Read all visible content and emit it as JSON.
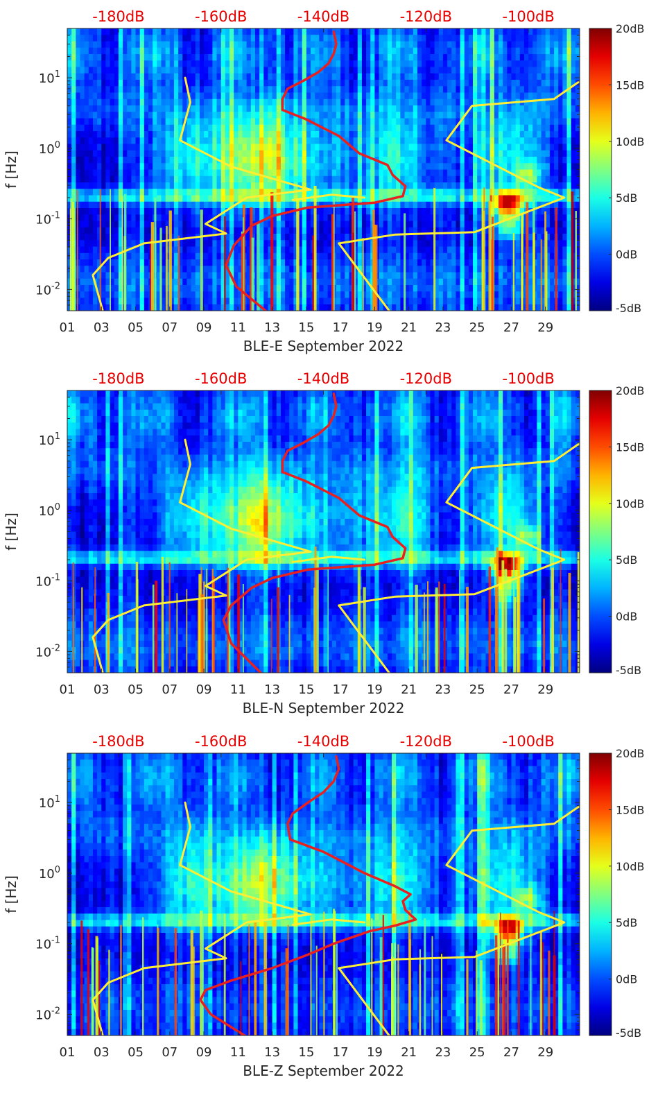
{
  "chart_data": [
    {
      "type": "heatmap",
      "title": "",
      "xlabel": "BLE-E September 2022",
      "ylabel": "f [Hz]",
      "x_tick_labels": [
        "01",
        "03",
        "05",
        "07",
        "09",
        "11",
        "13",
        "15",
        "17",
        "19",
        "21",
        "23",
        "25",
        "27",
        "29"
      ],
      "x_ticks_day": [
        1,
        3,
        5,
        7,
        9,
        11,
        13,
        15,
        17,
        19,
        21,
        23,
        25,
        27,
        29
      ],
      "xlim_day": [
        1,
        31
      ],
      "y_scale": "log",
      "ylim": [
        0.005,
        50
      ],
      "y_ticks": [
        {
          "value": 0.01,
          "base": "10",
          "exp": "-2"
        },
        {
          "value": 0.1,
          "base": "10",
          "exp": "-1"
        },
        {
          "value": 1,
          "base": "10",
          "exp": "0"
        },
        {
          "value": 10,
          "base": "10",
          "exp": "1"
        }
      ],
      "top_axis": {
        "labels": [
          "-180dB",
          "-160dB",
          "-140dB",
          "-120dB",
          "-100dB"
        ],
        "values_db": [
          -180,
          -160,
          -140,
          -120,
          -100
        ],
        "xlim_db": [
          -190,
          -90
        ]
      },
      "colorbar": {
        "labels": [
          "20dB",
          "15dB",
          "10dB",
          "5dB",
          "0dB",
          "-5dB"
        ],
        "values": [
          20,
          15,
          10,
          5,
          0,
          -5
        ],
        "range": [
          -5,
          20
        ],
        "colormap": "jet"
      },
      "series": [
        {
          "color": "#ffee33",
          "points": [
            [
              -183,
              0.0048
            ],
            [
              -185,
              0.016
            ],
            [
              -182,
              0.028
            ],
            [
              -175,
              0.045
            ],
            [
              -159,
              0.062
            ],
            [
              -163,
              0.085
            ],
            [
              -155,
              0.2
            ],
            [
              -142.5,
              0.26
            ],
            [
              -158,
              0.55
            ],
            [
              -168,
              1.3
            ],
            [
              -166,
              4.5
            ],
            [
              -167,
              10
            ]
          ]
        },
        {
          "color": "#ffee33",
          "points": [
            [
              -127,
              0.0048
            ],
            [
              -137,
              0.045
            ],
            [
              -126,
              0.06
            ],
            [
              -110.5,
              0.065
            ],
            [
              -93,
              0.2
            ],
            [
              -98,
              0.28
            ],
            [
              -116,
              1.3
            ],
            [
              -111,
              4
            ],
            [
              -95,
              5
            ],
            [
              -89,
              10
            ]
          ]
        },
        {
          "color": "#ffee33",
          "points": [
            [
              -146,
              0.185
            ],
            [
              -138.5,
              0.22
            ],
            [
              -132,
              0.2
            ]
          ]
        },
        {
          "color": "#e82020",
          "points": [
            [
              -151,
              0.0048
            ],
            [
              -157,
              0.011
            ],
            [
              -159,
              0.022
            ],
            [
              -157.5,
              0.042
            ],
            [
              -154,
              0.08
            ],
            [
              -150,
              0.11
            ],
            [
              -143,
              0.145
            ],
            [
              -130,
              0.17
            ],
            [
              -124.5,
              0.21
            ],
            [
              -124,
              0.29
            ],
            [
              -126.5,
              0.42
            ],
            [
              -127.5,
              0.58
            ],
            [
              -133,
              0.85
            ],
            [
              -137,
              1.5
            ],
            [
              -143.5,
              2.6
            ],
            [
              -148,
              3.5
            ],
            [
              -148,
              5
            ],
            [
              -147,
              7
            ],
            [
              -144,
              9
            ],
            [
              -141,
              12
            ],
            [
              -139,
              16
            ],
            [
              -138,
              22
            ],
            [
              -137.5,
              30
            ],
            [
              -138,
              45
            ]
          ]
        }
      ]
    },
    {
      "type": "heatmap",
      "title": "",
      "xlabel": "BLE-N September 2022",
      "ylabel": "f [Hz]",
      "x_tick_labels": [
        "01",
        "03",
        "05",
        "07",
        "09",
        "11",
        "13",
        "15",
        "17",
        "19",
        "21",
        "23",
        "25",
        "27",
        "29"
      ],
      "x_ticks_day": [
        1,
        3,
        5,
        7,
        9,
        11,
        13,
        15,
        17,
        19,
        21,
        23,
        25,
        27,
        29
      ],
      "xlim_day": [
        1,
        31
      ],
      "y_scale": "log",
      "ylim": [
        0.005,
        50
      ],
      "y_ticks": [
        {
          "value": 0.01,
          "base": "10",
          "exp": "-2"
        },
        {
          "value": 0.1,
          "base": "10",
          "exp": "-1"
        },
        {
          "value": 1,
          "base": "10",
          "exp": "0"
        },
        {
          "value": 10,
          "base": "10",
          "exp": "1"
        }
      ],
      "top_axis": {
        "labels": [
          "-180dB",
          "-160dB",
          "-140dB",
          "-120dB",
          "-100dB"
        ],
        "values_db": [
          -180,
          -160,
          -140,
          -120,
          -100
        ],
        "xlim_db": [
          -190,
          -90
        ]
      },
      "colorbar": {
        "labels": [
          "20dB",
          "15dB",
          "10dB",
          "5dB",
          "0dB",
          "-5dB"
        ],
        "values": [
          20,
          15,
          10,
          5,
          0,
          -5
        ],
        "range": [
          -5,
          20
        ],
        "colormap": "jet"
      },
      "series": [
        {
          "color": "#ffee33",
          "points": [
            [
              -183,
              0.0048
            ],
            [
              -185,
              0.016
            ],
            [
              -182,
              0.028
            ],
            [
              -175,
              0.045
            ],
            [
              -159,
              0.062
            ],
            [
              -163,
              0.085
            ],
            [
              -155,
              0.2
            ],
            [
              -142.5,
              0.26
            ],
            [
              -158,
              0.55
            ],
            [
              -168,
              1.3
            ],
            [
              -166,
              4.5
            ],
            [
              -167,
              10
            ]
          ]
        },
        {
          "color": "#ffee33",
          "points": [
            [
              -127,
              0.0048
            ],
            [
              -137,
              0.045
            ],
            [
              -126,
              0.06
            ],
            [
              -110.5,
              0.065
            ],
            [
              -93,
              0.2
            ],
            [
              -98,
              0.28
            ],
            [
              -116,
              1.3
            ],
            [
              -111,
              4
            ],
            [
              -95,
              5
            ],
            [
              -89,
              10
            ]
          ]
        },
        {
          "color": "#ffee33",
          "points": [
            [
              -146,
              0.185
            ],
            [
              -138.5,
              0.22
            ],
            [
              -132,
              0.2
            ]
          ]
        },
        {
          "color": "#e82020",
          "points": [
            [
              -152,
              0.0048
            ],
            [
              -158,
              0.013
            ],
            [
              -159.5,
              0.028
            ],
            [
              -158,
              0.045
            ],
            [
              -154,
              0.08
            ],
            [
              -150,
              0.11
            ],
            [
              -143,
              0.145
            ],
            [
              -130,
              0.17
            ],
            [
              -124.5,
              0.21
            ],
            [
              -124,
              0.29
            ],
            [
              -126.5,
              0.42
            ],
            [
              -127.5,
              0.58
            ],
            [
              -133,
              0.85
            ],
            [
              -137,
              1.5
            ],
            [
              -143.5,
              2.6
            ],
            [
              -148,
              3.5
            ],
            [
              -148,
              5
            ],
            [
              -147,
              7
            ],
            [
              -144,
              9
            ],
            [
              -141,
              12
            ],
            [
              -139,
              16
            ],
            [
              -138,
              22
            ],
            [
              -137.5,
              30
            ],
            [
              -138,
              45
            ]
          ]
        }
      ]
    },
    {
      "type": "heatmap",
      "title": "",
      "xlabel": "BLE-Z September 2022",
      "ylabel": "f [Hz]",
      "x_tick_labels": [
        "01",
        "03",
        "05",
        "07",
        "09",
        "11",
        "13",
        "15",
        "17",
        "19",
        "21",
        "23",
        "25",
        "27",
        "29"
      ],
      "x_ticks_day": [
        1,
        3,
        5,
        7,
        9,
        11,
        13,
        15,
        17,
        19,
        21,
        23,
        25,
        27,
        29
      ],
      "xlim_day": [
        1,
        31
      ],
      "y_scale": "log",
      "ylim": [
        0.005,
        50
      ],
      "y_ticks": [
        {
          "value": 0.01,
          "base": "10",
          "exp": "-2"
        },
        {
          "value": 0.1,
          "base": "10",
          "exp": "-1"
        },
        {
          "value": 1,
          "base": "10",
          "exp": "0"
        },
        {
          "value": 10,
          "base": "10",
          "exp": "1"
        }
      ],
      "top_axis": {
        "labels": [
          "-180dB",
          "-160dB",
          "-140dB",
          "-120dB",
          "-100dB"
        ],
        "values_db": [
          -180,
          -160,
          -140,
          -120,
          -100
        ],
        "xlim_db": [
          -190,
          -90
        ]
      },
      "colorbar": {
        "labels": [
          "20dB",
          "15dB",
          "10dB",
          "5dB",
          "0dB",
          "-5dB"
        ],
        "values": [
          20,
          15,
          10,
          5,
          0,
          -5
        ],
        "range": [
          -5,
          20
        ],
        "colormap": "jet"
      },
      "series": [
        {
          "color": "#ffee33",
          "points": [
            [
              -183,
              0.0048
            ],
            [
              -185,
              0.016
            ],
            [
              -182,
              0.028
            ],
            [
              -175,
              0.045
            ],
            [
              -159,
              0.062
            ],
            [
              -163,
              0.085
            ],
            [
              -155,
              0.2
            ],
            [
              -142.5,
              0.26
            ],
            [
              -158,
              0.55
            ],
            [
              -168,
              1.3
            ],
            [
              -166,
              4.5
            ],
            [
              -167,
              10
            ]
          ]
        },
        {
          "color": "#ffee33",
          "points": [
            [
              -127,
              0.0048
            ],
            [
              -137,
              0.045
            ],
            [
              -126,
              0.06
            ],
            [
              -110.5,
              0.065
            ],
            [
              -93,
              0.2
            ],
            [
              -98,
              0.28
            ],
            [
              -116,
              1.3
            ],
            [
              -111,
              4
            ],
            [
              -95,
              5
            ],
            [
              -89,
              10
            ]
          ]
        },
        {
          "color": "#ffee33",
          "points": [
            [
              -146,
              0.185
            ],
            [
              -138.5,
              0.22
            ],
            [
              -132,
              0.2
            ]
          ]
        },
        {
          "color": "#e82020",
          "points": [
            [
              -155,
              0.0048
            ],
            [
              -162,
              0.01
            ],
            [
              -164,
              0.016
            ],
            [
              -163,
              0.022
            ],
            [
              -158,
              0.03
            ],
            [
              -150,
              0.045
            ],
            [
              -143,
              0.07
            ],
            [
              -138,
              0.1
            ],
            [
              -131,
              0.15
            ],
            [
              -126,
              0.18
            ],
            [
              -122,
              0.22
            ],
            [
              -124,
              0.3
            ],
            [
              -124.5,
              0.4
            ],
            [
              -123,
              0.5
            ],
            [
              -126,
              0.65
            ],
            [
              -132,
              1
            ],
            [
              -140,
              2
            ],
            [
              -146.5,
              3
            ],
            [
              -147,
              5
            ],
            [
              -146,
              7
            ],
            [
              -143,
              10
            ],
            [
              -140,
              14
            ],
            [
              -138,
              20
            ],
            [
              -137,
              30
            ],
            [
              -137.5,
              45
            ]
          ]
        }
      ]
    }
  ]
}
